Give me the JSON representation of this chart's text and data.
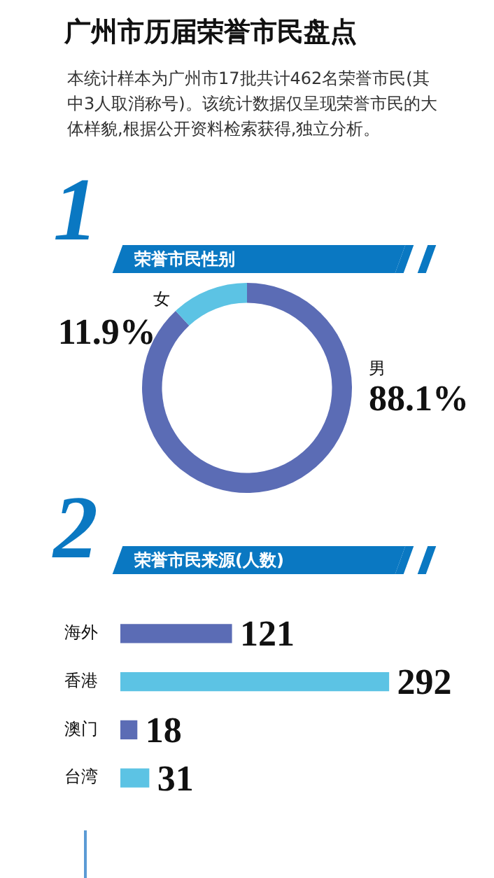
{
  "chart_data": [
    {
      "type": "donut",
      "title": "广州市历届荣誉市民盘点",
      "subtitle": "本统计样本为广州市17批共计462名荣誉市民(其中3人取消称号)。该统计数据仅呈现荣誉市民的大体样貌,根据公开资料检索获得,独立分析。",
      "xlabel": "荣誉市民性别",
      "annotations": [
        "1"
      ],
      "categories": [
        "男",
        "女"
      ],
      "values": [
        88.1,
        11.9
      ],
      "colors": [
        "#5b6cb5",
        "#5cc3e4"
      ],
      "value_labels": [
        "88.1%",
        "11.9%"
      ],
      "legend": false
    },
    {
      "type": "bar",
      "orientation": "horizontal",
      "xlabel": "荣誉市民来源(人数)",
      "annotations": [
        "2"
      ],
      "categories": [
        "海外",
        "香港",
        "澳门",
        "台湾"
      ],
      "values": [
        121,
        292,
        18,
        31
      ],
      "colors": [
        "#5b6cb5",
        "#5cc3e4",
        "#5b6cb5",
        "#5cc3e4"
      ],
      "data_labels": true,
      "legend": false,
      "tick_labels": "y",
      "grid": false
    }
  ]
}
